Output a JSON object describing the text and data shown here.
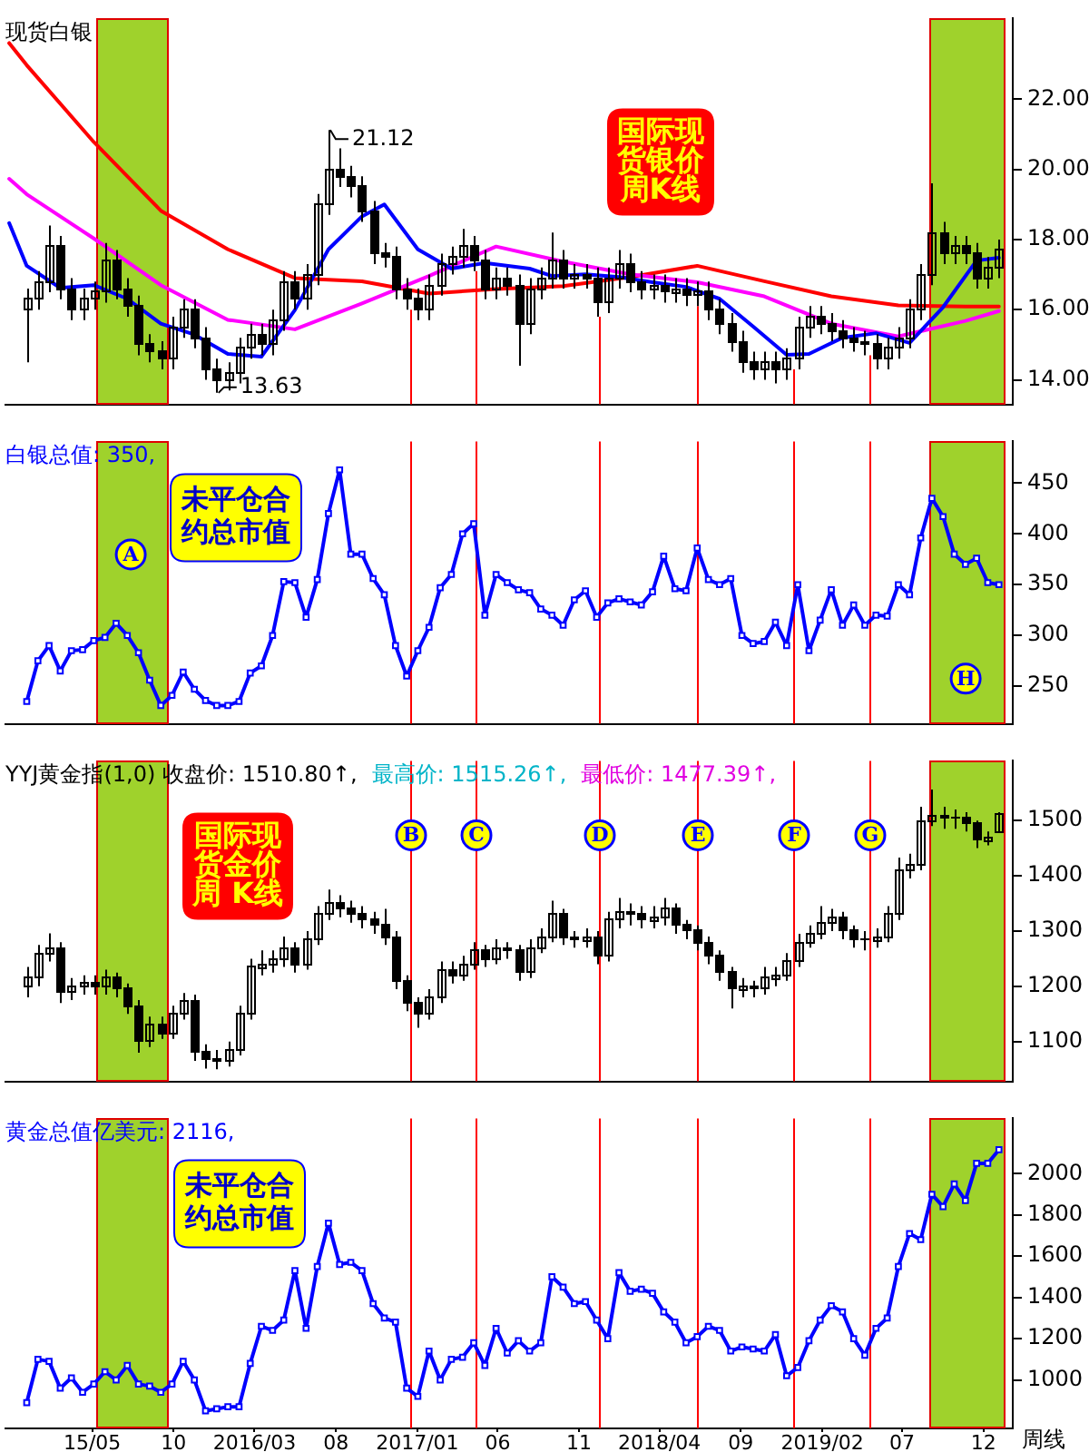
{
  "chart_data": [
    {
      "type": "candlestick",
      "title": "现货白银",
      "color": "#000000",
      "legend": false,
      "tick_labels": "y",
      "x": [
        "2014-12-29",
        "2015-01-19",
        "2015-02-09",
        "2015-03-02",
        "2015-03-23",
        "2015-04-13",
        "2015-05-04",
        "2015-05-25",
        "2015-06-15",
        "2015-07-06",
        "2015-07-27",
        "2015-08-17",
        "2015-09-07",
        "2015-09-28",
        "2015-10-19",
        "2015-11-09",
        "2015-11-30",
        "2015-12-21",
        "2016-01-11",
        "2016-02-01",
        "2016-02-22",
        "2016-03-14",
        "2016-04-04",
        "2016-04-25",
        "2016-05-16",
        "2016-06-06",
        "2016-06-27",
        "2016-07-18",
        "2016-08-08",
        "2016-08-29",
        "2016-09-19",
        "2016-10-10",
        "2016-10-31",
        "2016-11-21",
        "2016-12-12",
        "2017-01-02",
        "2017-01-23",
        "2017-02-13",
        "2017-03-06",
        "2017-03-27",
        "2017-04-17",
        "2017-05-08",
        "2017-05-29",
        "2017-06-19",
        "2017-07-10",
        "2017-07-31",
        "2017-08-21",
        "2017-09-11",
        "2017-10-02",
        "2017-10-23",
        "2017-11-13",
        "2017-12-04",
        "2017-12-25",
        "2018-01-15",
        "2018-02-05",
        "2018-02-26",
        "2018-03-19",
        "2018-04-09",
        "2018-04-30",
        "2018-05-21",
        "2018-06-11",
        "2018-07-02",
        "2018-07-23",
        "2018-08-13",
        "2018-09-03",
        "2018-09-24",
        "2018-10-15",
        "2018-11-05",
        "2018-11-26",
        "2018-12-17",
        "2019-01-07",
        "2019-01-28",
        "2019-02-18",
        "2019-03-11",
        "2019-04-01",
        "2019-04-22",
        "2019-05-13",
        "2019-06-03",
        "2019-06-24",
        "2019-07-15",
        "2019-08-05",
        "2019-08-26",
        "2019-09-16",
        "2019-10-07",
        "2019-10-28",
        "2019-11-18",
        "2019-12-09",
        "2019-12-30"
      ],
      "ohlc": [
        [
          16.0,
          16.6,
          14.5,
          16.3
        ],
        [
          16.3,
          17.1,
          16.0,
          16.8
        ],
        [
          16.8,
          18.4,
          16.5,
          17.8
        ],
        [
          17.8,
          18.1,
          16.3,
          16.6
        ],
        [
          16.6,
          16.9,
          15.7,
          16.0
        ],
        [
          16.0,
          16.6,
          15.7,
          16.3
        ],
        [
          16.3,
          16.8,
          16.0,
          16.5
        ],
        [
          16.5,
          17.9,
          16.2,
          17.4
        ],
        [
          17.4,
          17.7,
          16.3,
          16.6
        ],
        [
          16.6,
          16.9,
          15.8,
          16.1
        ],
        [
          16.1,
          16.4,
          14.7,
          15.0
        ],
        [
          15.0,
          15.3,
          14.5,
          14.8
        ],
        [
          14.8,
          15.1,
          14.3,
          14.6
        ],
        [
          14.6,
          15.8,
          14.3,
          15.5
        ],
        [
          15.5,
          16.3,
          15.2,
          16.0
        ],
        [
          16.0,
          16.3,
          14.9,
          15.2
        ],
        [
          15.2,
          15.5,
          14.0,
          14.3
        ],
        [
          14.3,
          14.6,
          13.63,
          14.0
        ],
        [
          14.0,
          14.5,
          13.7,
          14.2
        ],
        [
          14.2,
          15.2,
          13.9,
          14.9
        ],
        [
          14.9,
          15.6,
          14.6,
          15.3
        ],
        [
          15.3,
          15.6,
          14.7,
          15.0
        ],
        [
          15.0,
          16.0,
          14.7,
          15.7
        ],
        [
          15.7,
          17.1,
          15.4,
          16.8
        ],
        [
          16.8,
          17.1,
          16.0,
          16.3
        ],
        [
          16.3,
          17.3,
          16.0,
          17.0
        ],
        [
          17.0,
          19.3,
          16.7,
          19.0
        ],
        [
          19.0,
          21.12,
          18.7,
          20.0
        ],
        [
          20.0,
          20.6,
          19.5,
          19.8
        ],
        [
          19.8,
          20.1,
          19.2,
          19.5
        ],
        [
          19.5,
          19.8,
          18.5,
          18.8
        ],
        [
          18.8,
          19.1,
          17.3,
          17.6
        ],
        [
          17.6,
          17.9,
          17.2,
          17.5
        ],
        [
          17.5,
          17.8,
          16.3,
          16.6
        ],
        [
          16.6,
          16.9,
          16.0,
          16.3
        ],
        [
          16.3,
          16.6,
          15.7,
          16.0
        ],
        [
          16.0,
          17.0,
          15.7,
          16.7
        ],
        [
          16.7,
          17.6,
          16.4,
          17.3
        ],
        [
          17.3,
          17.8,
          17.0,
          17.5
        ],
        [
          17.5,
          18.3,
          17.2,
          17.8
        ],
        [
          17.8,
          18.1,
          17.1,
          17.4
        ],
        [
          17.4,
          17.7,
          16.3,
          16.6
        ],
        [
          16.6,
          17.2,
          16.3,
          16.9
        ],
        [
          16.9,
          17.2,
          16.4,
          16.7
        ],
        [
          16.7,
          17.0,
          14.4,
          15.6
        ],
        [
          15.6,
          16.9,
          15.3,
          16.6
        ],
        [
          16.6,
          17.2,
          16.3,
          16.9
        ],
        [
          16.9,
          18.2,
          16.6,
          17.4
        ],
        [
          17.4,
          17.7,
          16.6,
          16.9
        ],
        [
          16.9,
          17.3,
          16.6,
          17.0
        ],
        [
          17.0,
          17.3,
          16.6,
          16.9
        ],
        [
          16.9,
          17.2,
          15.8,
          16.2
        ],
        [
          16.2,
          17.2,
          15.9,
          16.9
        ],
        [
          16.9,
          17.7,
          16.6,
          17.3
        ],
        [
          17.3,
          17.6,
          16.5,
          16.8
        ],
        [
          16.8,
          17.1,
          16.3,
          16.6
        ],
        [
          16.6,
          17.0,
          16.3,
          16.7
        ],
        [
          16.7,
          17.0,
          16.2,
          16.5
        ],
        [
          16.5,
          16.9,
          16.2,
          16.6
        ],
        [
          16.6,
          16.9,
          16.1,
          16.4
        ],
        [
          16.4,
          16.8,
          16.1,
          16.5
        ],
        [
          16.5,
          16.8,
          15.7,
          16.0
        ],
        [
          16.0,
          16.3,
          15.3,
          15.6
        ],
        [
          15.6,
          15.9,
          14.8,
          15.1
        ],
        [
          15.1,
          15.4,
          14.2,
          14.5
        ],
        [
          14.5,
          14.8,
          14.0,
          14.3
        ],
        [
          14.3,
          14.8,
          14.0,
          14.5
        ],
        [
          14.5,
          14.8,
          13.9,
          14.3
        ],
        [
          14.3,
          14.9,
          14.0,
          14.6
        ],
        [
          14.6,
          15.8,
          14.3,
          15.5
        ],
        [
          15.5,
          16.1,
          15.2,
          15.8
        ],
        [
          15.8,
          16.1,
          15.3,
          15.6
        ],
        [
          15.6,
          15.9,
          15.1,
          15.4
        ],
        [
          15.4,
          15.7,
          14.9,
          15.2
        ],
        [
          15.2,
          15.5,
          14.8,
          15.1
        ],
        [
          15.1,
          15.4,
          14.7,
          15.0
        ],
        [
          15.0,
          15.3,
          14.3,
          14.6
        ],
        [
          14.6,
          15.2,
          14.3,
          14.9
        ],
        [
          14.9,
          15.5,
          14.6,
          15.2
        ],
        [
          15.2,
          16.3,
          14.9,
          16.0
        ],
        [
          16.0,
          17.3,
          15.7,
          17.0
        ],
        [
          17.0,
          19.6,
          16.7,
          18.2
        ],
        [
          18.2,
          18.5,
          17.3,
          17.6
        ],
        [
          17.6,
          18.1,
          17.3,
          17.8
        ],
        [
          17.8,
          18.1,
          17.3,
          17.6
        ],
        [
          17.6,
          17.9,
          16.6,
          16.9
        ],
        [
          16.9,
          17.5,
          16.6,
          17.2
        ],
        [
          17.2,
          18.0,
          16.9,
          17.7
        ]
      ],
      "series": [
        {
          "type": "line",
          "color": "#0000ff",
          "x": [
            "2014-11-26",
            "2014-12-29",
            "2015-03-02",
            "2015-05-04",
            "2015-07-06",
            "2015-09-07",
            "2015-11-09",
            "2016-01-11",
            "2016-03-14",
            "2016-05-16",
            "2016-07-18",
            "2016-09-19",
            "2016-10-31",
            "2017-01-02",
            "2017-03-06",
            "2017-05-08",
            "2017-07-31",
            "2017-09-11",
            "2017-11-13",
            "2018-01-15",
            "2018-03-19",
            "2018-05-21",
            "2018-07-23",
            "2018-09-24",
            "2018-11-26",
            "2019-01-07",
            "2019-03-11",
            "2019-05-13",
            "2019-07-15",
            "2019-09-16",
            "2019-11-18",
            "2019-12-30"
          ],
          "values": [
            18.47,
            17.25,
            16.62,
            16.7,
            16.31,
            15.6,
            15.29,
            14.74,
            14.66,
            15.99,
            17.72,
            18.66,
            19.0,
            17.72,
            17.17,
            17.33,
            17.17,
            16.96,
            17.01,
            16.93,
            16.78,
            16.65,
            16.31,
            15.52,
            14.71,
            14.74,
            15.2,
            15.33,
            15.05,
            16.07,
            17.4,
            17.48
          ]
        },
        {
          "type": "line",
          "color": "#ff00ff",
          "x": [
            "2014-11-26",
            "2014-12-29",
            "2015-05-04",
            "2015-09-07",
            "2016-01-11",
            "2016-05-16",
            "2016-09-19",
            "2017-01-23",
            "2017-05-29",
            "2017-10-02",
            "2018-02-05",
            "2018-06-11",
            "2018-10-15",
            "2019-02-18",
            "2019-06-24",
            "2019-10-28",
            "2019-12-30"
          ],
          "values": [
            19.73,
            19.29,
            18.03,
            16.7,
            15.71,
            15.44,
            16.18,
            16.96,
            17.8,
            17.37,
            17.01,
            16.78,
            16.38,
            15.6,
            15.24,
            15.68,
            15.96
          ]
        },
        {
          "type": "line",
          "color": "#ff0000",
          "x": [
            "2014-11-26",
            "2014-12-29",
            "2015-05-04",
            "2015-09-07",
            "2016-01-11",
            "2016-05-16",
            "2016-09-19",
            "2017-01-23",
            "2017-05-29",
            "2017-10-02",
            "2018-02-05",
            "2018-06-11",
            "2018-10-15",
            "2019-02-18",
            "2019-06-24",
            "2019-10-28",
            "2019-12-30"
          ],
          "values": [
            23.6,
            22.97,
            20.78,
            18.82,
            17.72,
            16.9,
            16.81,
            16.46,
            16.59,
            16.67,
            16.93,
            17.25,
            16.81,
            16.38,
            16.12,
            16.09,
            16.09
          ]
        }
      ],
      "xlim": [
        "2014-11-19",
        "2020-01-25"
      ],
      "ylim": [
        13.3,
        24.3
      ],
      "yticks": [
        {
          "value": 14,
          "label": "14.00"
        },
        {
          "value": 16,
          "label": "16.00"
        },
        {
          "value": 18,
          "label": "18.00"
        },
        {
          "value": 20,
          "label": "20.00"
        },
        {
          "value": 22,
          "label": "22.00"
        }
      ],
      "bands": [
        {
          "axis": "x",
          "from": "2015-05-07",
          "to": "2015-09-17",
          "color": "#9fd22c"
        },
        {
          "axis": "x",
          "from": "2019-08-20",
          "to": "2020-01-06",
          "color": "#9fd22c"
        }
      ],
      "ref_lines": [
        {
          "axis": "x",
          "value": "2016-12-18",
          "color": "#ff0000"
        },
        {
          "axis": "x",
          "value": "2017-04-19",
          "color": "#ff0000"
        },
        {
          "axis": "x",
          "value": "2017-12-09",
          "color": "#ff0000"
        },
        {
          "axis": "x",
          "value": "2018-06-10",
          "color": "#ff0000"
        },
        {
          "axis": "x",
          "value": "2018-12-07",
          "color": "#ff0000"
        },
        {
          "axis": "x",
          "value": "2019-05-02",
          "color": "#ff0000"
        }
      ],
      "annotations": [
        {
          "text": "21.12",
          "x": "2016-07-18",
          "y": 21.12
        },
        {
          "text": "13.63",
          "x": "2015-12-21",
          "y": 13.63
        },
        "国际现货银价周K线"
      ]
    },
    {
      "type": "line",
      "title": "白银总值: 350,",
      "legend": false,
      "tick_labels": "y",
      "marker": "square",
      "x": [
        "2014-12-29",
        "2015-01-19",
        "2015-02-09",
        "2015-03-02",
        "2015-03-23",
        "2015-04-13",
        "2015-05-04",
        "2015-05-25",
        "2015-06-15",
        "2015-07-06",
        "2015-07-27",
        "2015-08-17",
        "2015-09-07",
        "2015-09-28",
        "2015-10-19",
        "2015-11-09",
        "2015-11-30",
        "2015-12-21",
        "2016-01-11",
        "2016-02-01",
        "2016-02-22",
        "2016-03-14",
        "2016-04-04",
        "2016-04-25",
        "2016-05-16",
        "2016-06-06",
        "2016-06-27",
        "2016-07-18",
        "2016-08-08",
        "2016-08-29",
        "2016-09-19",
        "2016-10-10",
        "2016-10-31",
        "2016-11-21",
        "2016-12-12",
        "2017-01-02",
        "2017-01-23",
        "2017-02-13",
        "2017-03-06",
        "2017-03-27",
        "2017-04-17",
        "2017-05-08",
        "2017-05-29",
        "2017-06-19",
        "2017-07-10",
        "2017-07-31",
        "2017-08-21",
        "2017-09-11",
        "2017-10-02",
        "2017-10-23",
        "2017-11-13",
        "2017-12-04",
        "2017-12-25",
        "2018-01-15",
        "2018-02-05",
        "2018-02-26",
        "2018-03-19",
        "2018-04-09",
        "2018-04-30",
        "2018-05-21",
        "2018-06-11",
        "2018-07-02",
        "2018-07-23",
        "2018-08-13",
        "2018-09-03",
        "2018-09-24",
        "2018-10-15",
        "2018-11-05",
        "2018-11-26",
        "2018-12-17",
        "2019-01-07",
        "2019-01-28",
        "2019-02-18",
        "2019-03-11",
        "2019-04-01",
        "2019-04-22",
        "2019-05-13",
        "2019-06-03",
        "2019-06-24",
        "2019-07-15",
        "2019-08-05",
        "2019-08-26",
        "2019-09-16",
        "2019-10-07",
        "2019-10-28",
        "2019-11-18",
        "2019-12-09",
        "2019-12-30"
      ],
      "series": [
        {
          "color": "#0000ff",
          "values": [
            235,
            275,
            290,
            265,
            285,
            286,
            295,
            298,
            312,
            300,
            283,
            256,
            231,
            241,
            264,
            247,
            236,
            231,
            231,
            235,
            263,
            270,
            300,
            353,
            352,
            318,
            355,
            420,
            463,
            380,
            380,
            356,
            340,
            290,
            260,
            285,
            308,
            347,
            360,
            400,
            410,
            320,
            360,
            352,
            345,
            342,
            326,
            320,
            310,
            335,
            344,
            318,
            332,
            336,
            333,
            330,
            343,
            378,
            346,
            344,
            386,
            355,
            350,
            356,
            300,
            292,
            294,
            313,
            290,
            350,
            285,
            315,
            345,
            310,
            330,
            310,
            320,
            319,
            350,
            340,
            396,
            435,
            417,
            380,
            370,
            376,
            352,
            350
          ]
        }
      ],
      "xlim": [
        "2014-11-19",
        "2020-01-25"
      ],
      "ylim": [
        213,
        491
      ],
      "yticks": [
        250,
        300,
        350,
        400,
        450
      ],
      "bands": [
        {
          "axis": "x",
          "from": "2015-05-07",
          "to": "2015-09-17",
          "color": "#9fd22c",
          "label": "A"
        },
        {
          "axis": "x",
          "from": "2019-08-20",
          "to": "2020-01-06",
          "color": "#9fd22c",
          "label": "H"
        }
      ],
      "ref_lines": [
        {
          "axis": "x",
          "value": "2016-12-18",
          "color": "#ff0000"
        },
        {
          "axis": "x",
          "value": "2017-04-19",
          "color": "#ff0000"
        },
        {
          "axis": "x",
          "value": "2017-12-09",
          "color": "#ff0000"
        },
        {
          "axis": "x",
          "value": "2018-06-10",
          "color": "#ff0000"
        },
        {
          "axis": "x",
          "value": "2018-12-07",
          "color": "#ff0000"
        },
        {
          "axis": "x",
          "value": "2019-05-02",
          "color": "#ff0000"
        }
      ],
      "annotations": [
        "未平仓合约总市值"
      ]
    },
    {
      "type": "candlestick",
      "title": "YYJ黄金指(1,0) 收盘价: 1510.80↑,",
      "color": "#000000",
      "legend": false,
      "tick_labels": "y",
      "x": [
        "2014-12-29",
        "2015-01-19",
        "2015-02-09",
        "2015-03-02",
        "2015-03-23",
        "2015-04-13",
        "2015-05-04",
        "2015-05-25",
        "2015-06-15",
        "2015-07-06",
        "2015-07-27",
        "2015-08-17",
        "2015-09-07",
        "2015-09-28",
        "2015-10-19",
        "2015-11-09",
        "2015-11-30",
        "2015-12-21",
        "2016-01-11",
        "2016-02-01",
        "2016-02-22",
        "2016-03-14",
        "2016-04-04",
        "2016-04-25",
        "2016-05-16",
        "2016-06-06",
        "2016-06-27",
        "2016-07-18",
        "2016-08-08",
        "2016-08-29",
        "2016-09-19",
        "2016-10-10",
        "2016-10-31",
        "2016-11-21",
        "2016-12-12",
        "2017-01-02",
        "2017-01-23",
        "2017-02-13",
        "2017-03-06",
        "2017-03-27",
        "2017-04-17",
        "2017-05-08",
        "2017-05-29",
        "2017-06-19",
        "2017-07-10",
        "2017-07-31",
        "2017-08-21",
        "2017-09-11",
        "2017-10-02",
        "2017-10-23",
        "2017-11-13",
        "2017-12-04",
        "2017-12-25",
        "2018-01-15",
        "2018-02-05",
        "2018-02-26",
        "2018-03-19",
        "2018-04-09",
        "2018-04-30",
        "2018-05-21",
        "2018-06-11",
        "2018-07-02",
        "2018-07-23",
        "2018-08-13",
        "2018-09-03",
        "2018-09-24",
        "2018-10-15",
        "2018-11-05",
        "2018-11-26",
        "2018-12-17",
        "2019-01-07",
        "2019-01-28",
        "2019-02-18",
        "2019-03-11",
        "2019-04-01",
        "2019-04-22",
        "2019-05-13",
        "2019-06-03",
        "2019-06-24",
        "2019-07-15",
        "2019-08-05",
        "2019-08-26",
        "2019-09-16",
        "2019-10-07",
        "2019-10-28",
        "2019-11-18",
        "2019-12-09",
        "2019-12-30"
      ],
      "ohlc": [
        [
          1200,
          1235,
          1180,
          1215
        ],
        [
          1215,
          1275,
          1200,
          1260
        ],
        [
          1260,
          1296,
          1245,
          1270
        ],
        [
          1270,
          1280,
          1170,
          1190
        ],
        [
          1190,
          1215,
          1175,
          1200
        ],
        [
          1200,
          1220,
          1185,
          1205
        ],
        [
          1205,
          1220,
          1185,
          1200
        ],
        [
          1200,
          1230,
          1185,
          1215
        ],
        [
          1215,
          1225,
          1180,
          1195
        ],
        [
          1195,
          1205,
          1150,
          1165
        ],
        [
          1165,
          1175,
          1080,
          1100
        ],
        [
          1100,
          1145,
          1090,
          1130
        ],
        [
          1130,
          1145,
          1105,
          1115
        ],
        [
          1115,
          1165,
          1105,
          1150
        ],
        [
          1150,
          1188,
          1140,
          1175
        ],
        [
          1175,
          1185,
          1065,
          1080
        ],
        [
          1080,
          1095,
          1051,
          1070
        ],
        [
          1070,
          1085,
          1050,
          1065
        ],
        [
          1065,
          1100,
          1055,
          1085
        ],
        [
          1085,
          1165,
          1075,
          1150
        ],
        [
          1150,
          1250,
          1140,
          1235
        ],
        [
          1235,
          1265,
          1220,
          1240
        ],
        [
          1240,
          1265,
          1225,
          1250
        ],
        [
          1250,
          1290,
          1235,
          1270
        ],
        [
          1270,
          1280,
          1225,
          1240
        ],
        [
          1240,
          1300,
          1230,
          1285
        ],
        [
          1285,
          1345,
          1275,
          1330
        ],
        [
          1330,
          1375,
          1320,
          1350
        ],
        [
          1350,
          1365,
          1325,
          1340
        ],
        [
          1340,
          1355,
          1315,
          1330
        ],
        [
          1330,
          1345,
          1305,
          1320
        ],
        [
          1320,
          1335,
          1295,
          1310
        ],
        [
          1310,
          1340,
          1275,
          1290
        ],
        [
          1290,
          1300,
          1195,
          1210
        ],
        [
          1210,
          1220,
          1155,
          1170
        ],
        [
          1170,
          1180,
          1125,
          1150
        ],
        [
          1150,
          1195,
          1140,
          1180
        ],
        [
          1180,
          1245,
          1170,
          1230
        ],
        [
          1230,
          1245,
          1205,
          1220
        ],
        [
          1220,
          1255,
          1210,
          1240
        ],
        [
          1240,
          1280,
          1230,
          1265
        ],
        [
          1265,
          1275,
          1235,
          1250
        ],
        [
          1250,
          1285,
          1240,
          1270
        ],
        [
          1270,
          1280,
          1250,
          1265
        ],
        [
          1265,
          1275,
          1210,
          1225
        ],
        [
          1225,
          1285,
          1215,
          1270
        ],
        [
          1270,
          1305,
          1260,
          1290
        ],
        [
          1290,
          1355,
          1280,
          1330
        ],
        [
          1330,
          1340,
          1275,
          1290
        ],
        [
          1290,
          1300,
          1270,
          1285
        ],
        [
          1285,
          1305,
          1270,
          1290
        ],
        [
          1290,
          1300,
          1240,
          1255
        ],
        [
          1255,
          1335,
          1245,
          1320
        ],
        [
          1320,
          1360,
          1305,
          1335
        ],
        [
          1335,
          1350,
          1310,
          1330
        ],
        [
          1330,
          1345,
          1305,
          1320
        ],
        [
          1320,
          1345,
          1305,
          1325
        ],
        [
          1325,
          1360,
          1310,
          1340
        ],
        [
          1340,
          1350,
          1295,
          1310
        ],
        [
          1310,
          1320,
          1285,
          1300
        ],
        [
          1300,
          1310,
          1265,
          1280
        ],
        [
          1280,
          1290,
          1240,
          1255
        ],
        [
          1255,
          1265,
          1210,
          1225
        ],
        [
          1225,
          1235,
          1160,
          1195
        ],
        [
          1195,
          1215,
          1180,
          1200
        ],
        [
          1200,
          1210,
          1180,
          1195
        ],
        [
          1195,
          1235,
          1185,
          1215
        ],
        [
          1215,
          1235,
          1200,
          1220
        ],
        [
          1220,
          1260,
          1210,
          1245
        ],
        [
          1245,
          1295,
          1235,
          1280
        ],
        [
          1280,
          1310,
          1270,
          1295
        ],
        [
          1295,
          1345,
          1285,
          1315
        ],
        [
          1315,
          1340,
          1300,
          1325
        ],
        [
          1325,
          1335,
          1285,
          1300
        ],
        [
          1300,
          1310,
          1270,
          1285
        ],
        [
          1285,
          1300,
          1265,
          1285
        ],
        [
          1285,
          1305,
          1270,
          1290
        ],
        [
          1290,
          1345,
          1280,
          1330
        ],
        [
          1330,
          1433,
          1320,
          1410
        ],
        [
          1410,
          1440,
          1395,
          1420
        ],
        [
          1420,
          1525,
          1410,
          1500
        ],
        [
          1500,
          1556,
          1490,
          1510
        ],
        [
          1510,
          1525,
          1485,
          1505
        ],
        [
          1505,
          1520,
          1485,
          1505
        ],
        [
          1505,
          1515,
          1480,
          1495
        ],
        [
          1495,
          1500,
          1450,
          1465
        ],
        [
          1465,
          1480,
          1455,
          1470
        ],
        [
          1480,
          1515.26,
          1477.39,
          1510.8
        ]
      ],
      "xlim": [
        "2014-11-19",
        "2020-01-25"
      ],
      "ylim": [
        1028,
        1608
      ],
      "yticks": [
        1100,
        1200,
        1300,
        1400,
        1500
      ],
      "bands": [
        {
          "axis": "x",
          "from": "2015-05-07",
          "to": "2015-09-17",
          "color": "#9fd22c"
        },
        {
          "axis": "x",
          "from": "2019-08-20",
          "to": "2020-01-06",
          "color": "#9fd22c"
        }
      ],
      "ref_lines": [
        {
          "axis": "x",
          "value": "2016-12-18",
          "color": "#ff0000",
          "label": "B"
        },
        {
          "axis": "x",
          "value": "2017-04-19",
          "color": "#ff0000",
          "label": "C"
        },
        {
          "axis": "x",
          "value": "2017-12-09",
          "color": "#ff0000",
          "label": "D"
        },
        {
          "axis": "x",
          "value": "2018-06-10",
          "color": "#ff0000",
          "label": "E"
        },
        {
          "axis": "x",
          "value": "2018-12-07",
          "color": "#ff0000",
          "label": "F"
        },
        {
          "axis": "x",
          "value": "2019-05-02",
          "color": "#ff0000",
          "label": "G"
        }
      ],
      "annotations": [
        "最高价: 1515.26↑,",
        "最低价: 1477.39↑,",
        "国际现货金价周 K线"
      ]
    },
    {
      "type": "line",
      "title": "黄金总值亿美元: 2116,",
      "legend": false,
      "marker": "square",
      "x": [
        "2014-12-29",
        "2015-01-19",
        "2015-02-09",
        "2015-03-02",
        "2015-03-23",
        "2015-04-13",
        "2015-05-04",
        "2015-05-25",
        "2015-06-15",
        "2015-07-06",
        "2015-07-27",
        "2015-08-17",
        "2015-09-07",
        "2015-09-28",
        "2015-10-19",
        "2015-11-09",
        "2015-11-30",
        "2015-12-21",
        "2016-01-11",
        "2016-02-01",
        "2016-02-22",
        "2016-03-14",
        "2016-04-04",
        "2016-04-25",
        "2016-05-16",
        "2016-06-06",
        "2016-06-27",
        "2016-07-18",
        "2016-08-08",
        "2016-08-29",
        "2016-09-19",
        "2016-10-10",
        "2016-10-31",
        "2016-11-21",
        "2016-12-12",
        "2017-01-02",
        "2017-01-23",
        "2017-02-13",
        "2017-03-06",
        "2017-03-27",
        "2017-04-17",
        "2017-05-08",
        "2017-05-29",
        "2017-06-19",
        "2017-07-10",
        "2017-07-31",
        "2017-08-21",
        "2017-09-11",
        "2017-10-02",
        "2017-10-23",
        "2017-11-13",
        "2017-12-04",
        "2017-12-25",
        "2018-01-15",
        "2018-02-05",
        "2018-02-26",
        "2018-03-19",
        "2018-04-09",
        "2018-04-30",
        "2018-05-21",
        "2018-06-11",
        "2018-07-02",
        "2018-07-23",
        "2018-08-13",
        "2018-09-03",
        "2018-09-24",
        "2018-10-15",
        "2018-11-05",
        "2018-11-26",
        "2018-12-17",
        "2019-01-07",
        "2019-01-28",
        "2019-02-18",
        "2019-03-11",
        "2019-04-01",
        "2019-04-22",
        "2019-05-13",
        "2019-06-03",
        "2019-06-24",
        "2019-07-15",
        "2019-08-05",
        "2019-08-26",
        "2019-09-16",
        "2019-10-07",
        "2019-10-28",
        "2019-11-18",
        "2019-12-09",
        "2019-12-30"
      ],
      "series": [
        {
          "color": "#0000ff",
          "values": [
            890,
            1100,
            1090,
            960,
            1010,
            940,
            980,
            1040,
            1000,
            1070,
            980,
            970,
            940,
            980,
            1090,
            1000,
            850,
            860,
            870,
            870,
            1080,
            1260,
            1240,
            1290,
            1530,
            1250,
            1550,
            1760,
            1560,
            1570,
            1530,
            1370,
            1300,
            1280,
            960,
            920,
            1140,
            1000,
            1100,
            1110,
            1180,
            1070,
            1250,
            1130,
            1190,
            1140,
            1180,
            1500,
            1450,
            1370,
            1380,
            1290,
            1200,
            1520,
            1430,
            1440,
            1420,
            1330,
            1280,
            1180,
            1210,
            1260,
            1240,
            1140,
            1160,
            1150,
            1140,
            1220,
            1020,
            1060,
            1190,
            1290,
            1360,
            1330,
            1200,
            1120,
            1250,
            1300,
            1550,
            1710,
            1680,
            1900,
            1840,
            1950,
            1870,
            2050,
            2050,
            2116
          ]
        }
      ],
      "xlim": [
        "2014-11-19",
        "2020-01-25"
      ],
      "ylim": [
        765,
        2268
      ],
      "yticks": [
        1000,
        1200,
        1400,
        1600,
        1800,
        2000
      ],
      "xticks": [
        {
          "value": "2015-05-01",
          "label": "15/05"
        },
        {
          "value": "2015-10-01",
          "label": "10"
        },
        {
          "value": "2016-03-01",
          "label": "2016/03"
        },
        {
          "value": "2016-08-01",
          "label": "08"
        },
        {
          "value": "2017-01-01",
          "label": "2017/01"
        },
        {
          "value": "2017-06-01",
          "label": "06"
        },
        {
          "value": "2017-11-01",
          "label": "11"
        },
        {
          "value": "2018-04-01",
          "label": "2018/04"
        },
        {
          "value": "2018-09-01",
          "label": "09"
        },
        {
          "value": "2019-02-01",
          "label": "2019/02"
        },
        {
          "value": "2019-07-01",
          "label": "07"
        },
        {
          "value": "2019-12-01",
          "label": "12"
        }
      ],
      "bands": [
        {
          "axis": "x",
          "from": "2015-05-07",
          "to": "2015-09-17",
          "color": "#9fd22c"
        },
        {
          "axis": "x",
          "from": "2019-08-20",
          "to": "2020-01-06",
          "color": "#9fd22c"
        }
      ],
      "ref_lines": [
        {
          "axis": "x",
          "value": "2016-12-18",
          "color": "#ff0000"
        },
        {
          "axis": "x",
          "value": "2017-04-19",
          "color": "#ff0000"
        },
        {
          "axis": "x",
          "value": "2017-12-09",
          "color": "#ff0000"
        },
        {
          "axis": "x",
          "value": "2018-06-10",
          "color": "#ff0000"
        },
        {
          "axis": "x",
          "value": "2018-12-07",
          "color": "#ff0000"
        },
        {
          "axis": "x",
          "value": "2019-05-02",
          "color": "#ff0000"
        }
      ],
      "annotations": [
        "未平仓合约总市值",
        "周线"
      ]
    }
  ]
}
